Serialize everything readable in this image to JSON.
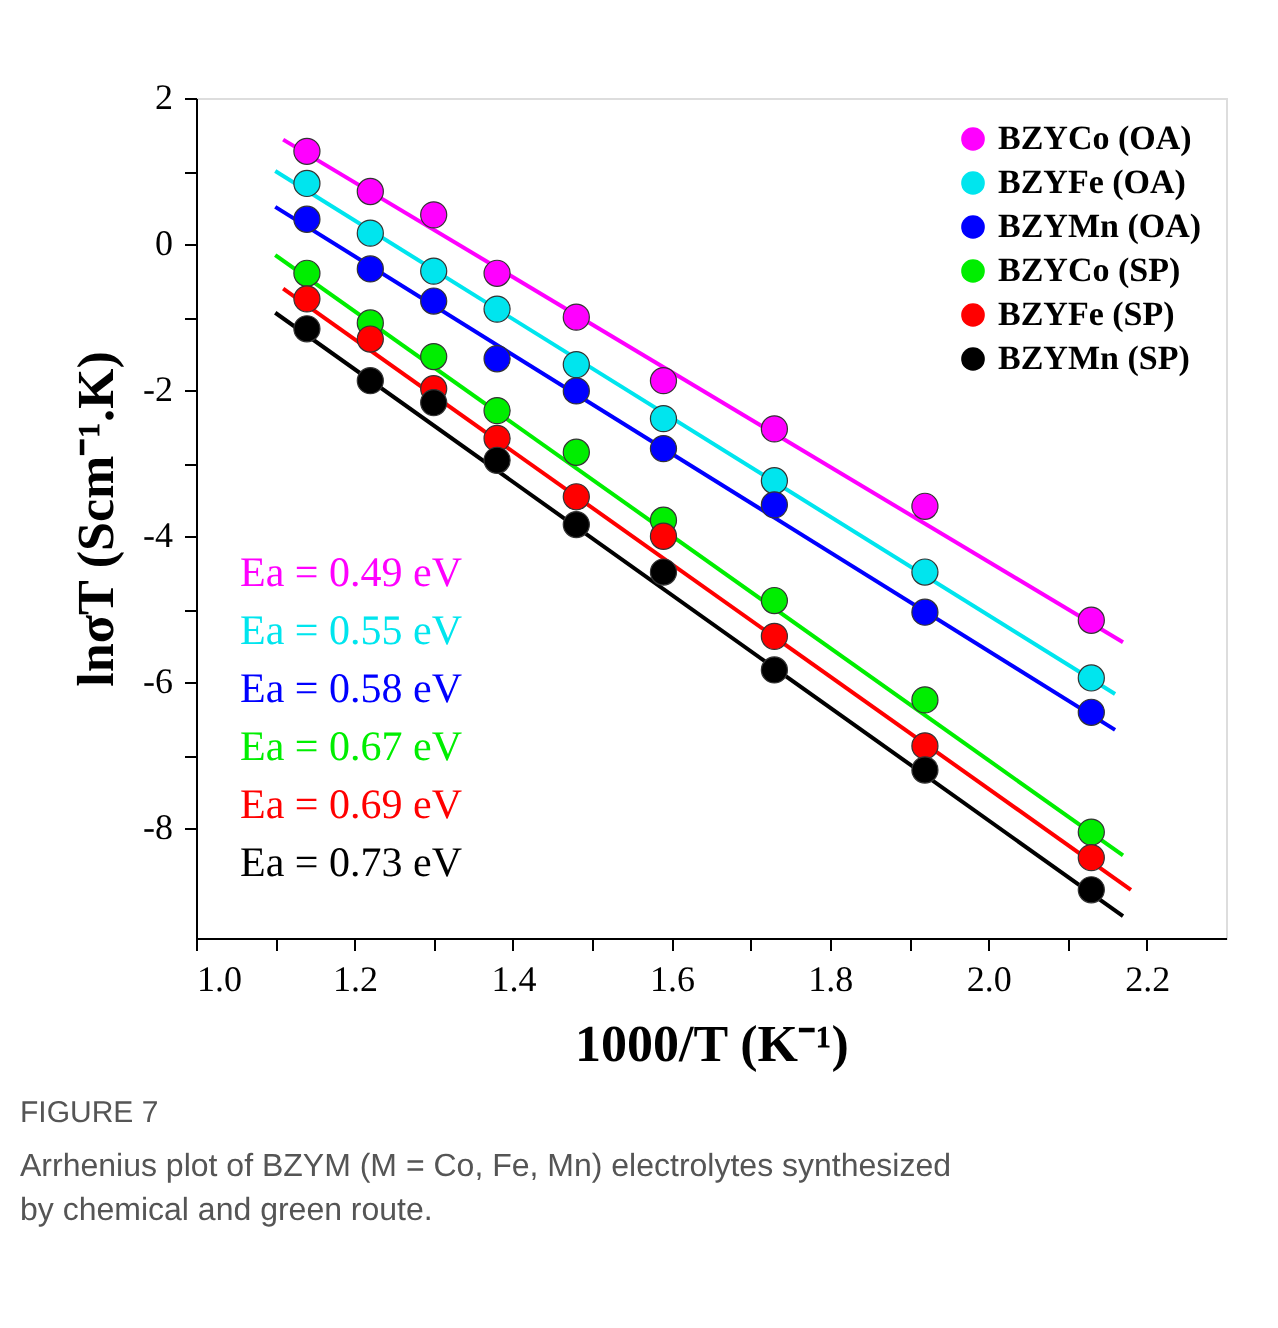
{
  "chart_data": {
    "type": "scatter",
    "xlabel": "1000/T (K⁻¹)",
    "ylabel": "lnσT (Scm⁻¹.K)",
    "x": [
      1.14,
      1.22,
      1.3,
      1.38,
      1.48,
      1.59,
      1.73,
      1.92,
      2.13
    ],
    "series": [
      {
        "name": "BZYCo (OA)",
        "color": "#ff00ff",
        "values": [
          1.27,
          0.72,
          0.4,
          -0.4,
          -1.0,
          -1.87,
          -2.53,
          -3.59,
          -5.15
        ]
      },
      {
        "name": "BZYFe (OA)",
        "color": "#00e5ee",
        "values": [
          0.83,
          0.15,
          -0.37,
          -0.89,
          -1.65,
          -2.39,
          -3.24,
          -4.49,
          -5.94
        ]
      },
      {
        "name": "BZYMn (OA)",
        "color": "#0000ff",
        "values": [
          0.34,
          -0.34,
          -0.78,
          -1.57,
          -2.01,
          -2.8,
          -3.57,
          -5.04,
          -6.41
        ]
      },
      {
        "name": "BZYCo (SP)",
        "color": "#00ee00",
        "values": [
          -0.4,
          -1.08,
          -1.54,
          -2.28,
          -2.85,
          -3.78,
          -4.88,
          -6.24,
          -8.05
        ]
      },
      {
        "name": "BZYFe (SP)",
        "color": "#ff0000",
        "values": [
          -0.75,
          -1.3,
          -1.98,
          -2.66,
          -3.46,
          -4.0,
          -5.37,
          -6.87,
          -8.4
        ]
      },
      {
        "name": "BZYMn (SP)",
        "color": "#000000",
        "values": [
          -1.16,
          -1.87,
          -2.17,
          -2.96,
          -3.84,
          -4.49,
          -5.83,
          -7.2,
          -8.84
        ]
      },
      {
        "type": "line",
        "marker": "none",
        "color": "#ff00ff",
        "x": [
          1.11,
          2.17
        ],
        "values": [
          1.43,
          -5.45
        ]
      },
      {
        "type": "line",
        "marker": "none",
        "color": "#00e5ee",
        "x": [
          1.1,
          2.16
        ],
        "values": [
          1.0,
          -6.16
        ]
      },
      {
        "type": "line",
        "marker": "none",
        "color": "#0000ff",
        "x": [
          1.1,
          2.16
        ],
        "values": [
          0.51,
          -6.65
        ]
      },
      {
        "type": "line",
        "marker": "none",
        "color": "#00ee00",
        "x": [
          1.1,
          2.17
        ],
        "values": [
          -0.15,
          -8.37
        ]
      },
      {
        "type": "line",
        "marker": "none",
        "color": "#ff0000",
        "x": [
          1.11,
          2.18
        ],
        "values": [
          -0.61,
          -8.84
        ]
      },
      {
        "type": "line",
        "marker": "none",
        "color": "#000000",
        "x": [
          1.1,
          2.17
        ],
        "values": [
          -0.94,
          -9.2
        ]
      }
    ],
    "annotations": [
      "Ea = 0.49 eV",
      "Ea = 0.55 eV",
      "Ea = 0.58 eV",
      "Ea = 0.67 eV",
      "Ea = 0.69 eV",
      "Ea = 0.73 eV",
      "FIGURE 7",
      "Arrhenius plot of BZYM (M = Co, Fe, Mn) electrolytes synthesized by chemical and green route."
    ],
    "xlim": [
      1.0,
      2.3
    ],
    "ylim": [
      -9.5,
      2
    ],
    "xticks": [
      {
        "value": 1,
        "label": "1.0"
      },
      {
        "value": 1.1,
        "label": null
      },
      1.2,
      {
        "value": 1.3,
        "label": null
      },
      1.4,
      {
        "value": 1.5,
        "label": null
      },
      1.6,
      {
        "value": 1.7,
        "label": null
      },
      1.8,
      {
        "value": 1.9,
        "label": null
      },
      {
        "value": 2,
        "label": "2.0"
      },
      {
        "value": 2.1,
        "label": null
      },
      2.2
    ],
    "yticks": [
      -8,
      {
        "value": -7,
        "label": null
      },
      -6,
      {
        "value": -5,
        "label": null
      },
      -4,
      {
        "value": -3,
        "label": null
      },
      -2,
      {
        "value": -1,
        "label": null
      },
      0,
      {
        "value": 1,
        "label": null
      },
      2
    ],
    "marker": "circle",
    "legend": "top right",
    "grid": false
  }
}
